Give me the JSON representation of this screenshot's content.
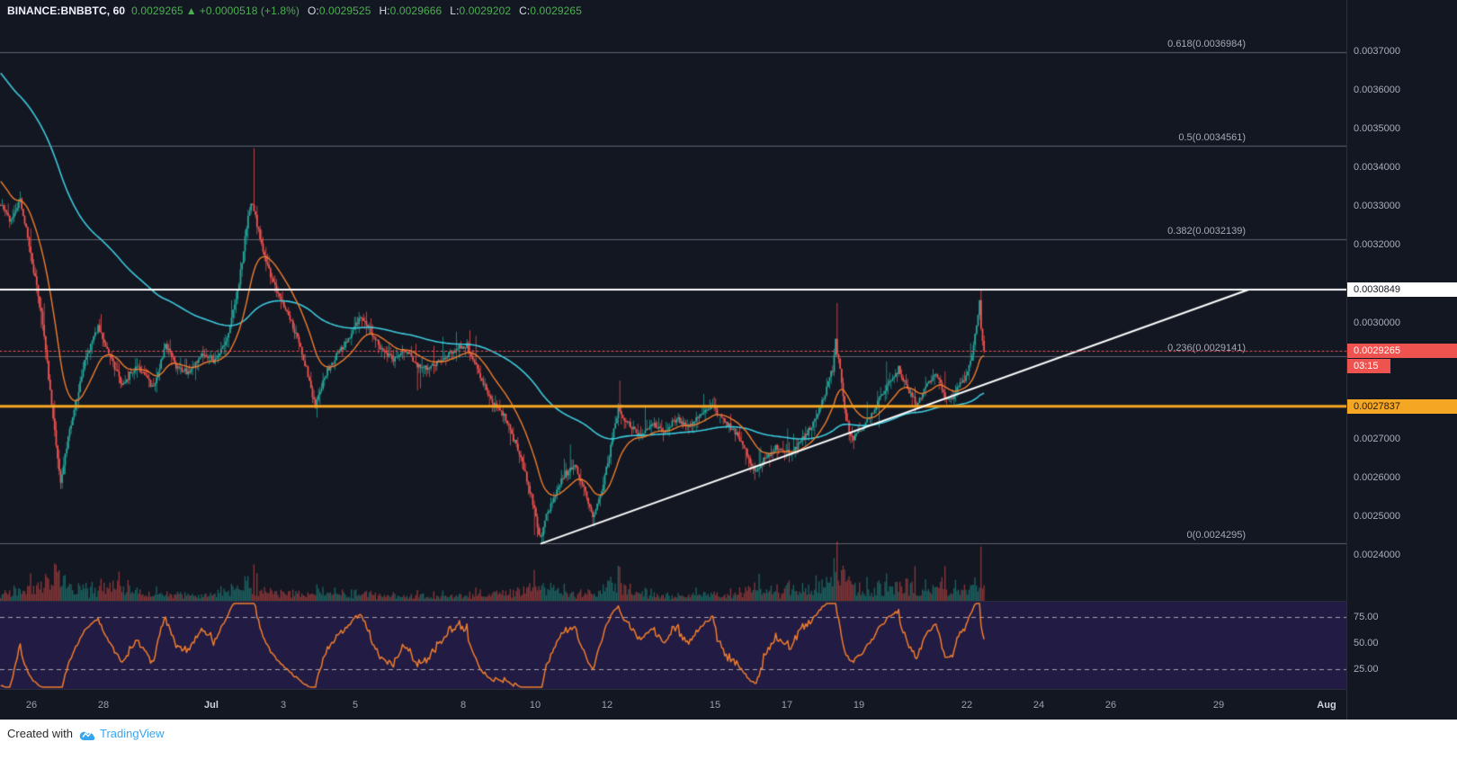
{
  "header": {
    "symbol": "BINANCE:BNBBTC, 60",
    "last_price": "0.0029265",
    "change_arrow": "▲",
    "change": "+0.0000518 (+1.8%)",
    "ohlc": [
      {
        "label": "O:",
        "value": "0.0029525"
      },
      {
        "label": "H:",
        "value": "0.0029666"
      },
      {
        "label": "L:",
        "value": "0.0029202"
      },
      {
        "label": "C:",
        "value": "0.0029265"
      }
    ]
  },
  "price_axis": {
    "ticks": [
      "0.0037000",
      "0.0036000",
      "0.0035000",
      "0.0034000",
      "0.0033000",
      "0.0032000",
      "0.0030000",
      "0.0027000",
      "0.0026000",
      "0.0025000",
      "0.0024000"
    ],
    "white_label": "0.0030849",
    "last_label": "0.0029265",
    "countdown": "03:15",
    "yellow_label": "0.0027837"
  },
  "rsi_axis": [
    "75.00",
    "50.00",
    "25.00"
  ],
  "time_axis": [
    {
      "label": "26",
      "day": 0
    },
    {
      "label": "28",
      "day": 2
    },
    {
      "label": "Jul",
      "day": 5,
      "month": true
    },
    {
      "label": "3",
      "day": 7
    },
    {
      "label": "5",
      "day": 9
    },
    {
      "label": "8",
      "day": 12
    },
    {
      "label": "10",
      "day": 14
    },
    {
      "label": "12",
      "day": 16
    },
    {
      "label": "15",
      "day": 19
    },
    {
      "label": "17",
      "day": 21
    },
    {
      "label": "19",
      "day": 23
    },
    {
      "label": "22",
      "day": 26
    },
    {
      "label": "24",
      "day": 28
    },
    {
      "label": "26",
      "day": 30
    },
    {
      "label": "29",
      "day": 33
    },
    {
      "label": "Aug",
      "day": 36,
      "month": true
    }
  ],
  "footer": {
    "created_with": "Created with",
    "brand": "TradingView"
  },
  "colors": {
    "bg": "#131722",
    "up": "#26a69a",
    "down": "#ef5350",
    "cyan": "#3cc9dc",
    "orange": "#ef7d2d",
    "gold": "#f5a623",
    "white": "#ffffff",
    "fib_line": "rgba(190,196,205,0.45)",
    "header_green": "#4caf50",
    "rsi_bg": "#221b43"
  },
  "chart_data": {
    "type": "candlestick",
    "symbol": "BINANCE:BNBBTC",
    "timeframe_minutes": 60,
    "title": "BNB/BTC hourly with Fibonacci retracement, ascending trendline, two EMAs, volume and RSI",
    "last": {
      "o": 0.0029525,
      "h": 0.0029666,
      "l": 0.0029202,
      "c": 0.0029265,
      "change": 5.18e-05,
      "change_pct": 1.8
    },
    "ylim": [
      0.0022817,
      0.0038323
    ],
    "hours_visible": 657,
    "fib_levels": [
      {
        "label": "0.618(0.0036984)",
        "value": 0.0036984
      },
      {
        "label": "0.5(0.0034561)",
        "value": 0.0034561
      },
      {
        "label": "0.382(0.0032139)",
        "value": 0.0032139
      },
      {
        "label": "0.236(0.0029141)",
        "value": 0.0029141
      },
      {
        "label": "0(0.0024295)",
        "value": 0.0024295
      }
    ],
    "levels": {
      "resistance_white": 0.0030849,
      "last_price": 0.0029265,
      "support_yellow": 0.0027837
    },
    "trendline": {
      "t1": 361,
      "p1": 0.0024295,
      "t2": 833,
      "p2": 0.0030849
    },
    "moving_averages": [
      {
        "name": "slow-ema-140",
        "color_key": "cyan"
      },
      {
        "name": "fast-ema-24",
        "color_key": "orange"
      }
    ],
    "rsi": {
      "period": 14,
      "upper": 75,
      "mid": 50,
      "lower": 25
    },
    "pre_keyframes": [
      [
        -113,
        0.00403
      ],
      [
        -82,
        0.00381
      ],
      [
        -51,
        0.00362
      ],
      [
        -25,
        0.00344
      ],
      [
        -8,
        0.00335
      ]
    ],
    "price_keyframes": [
      [
        0,
        0.00331
      ],
      [
        8,
        0.00326
      ],
      [
        14,
        0.00332
      ],
      [
        21,
        0.00318
      ],
      [
        29,
        0.003
      ],
      [
        37,
        0.00272
      ],
      [
        41,
        0.00259
      ],
      [
        47,
        0.00272
      ],
      [
        57,
        0.0029
      ],
      [
        66,
        0.00299
      ],
      [
        74,
        0.00291
      ],
      [
        82,
        0.00284
      ],
      [
        92,
        0.00289
      ],
      [
        103,
        0.00283
      ],
      [
        111,
        0.00294
      ],
      [
        119,
        0.00288
      ],
      [
        127,
        0.00287
      ],
      [
        136,
        0.00292
      ],
      [
        144,
        0.0029
      ],
      [
        152,
        0.00296
      ],
      [
        160,
        0.0031
      ],
      [
        166,
        0.00328
      ],
      [
        169,
        0.00331
      ],
      [
        175,
        0.0032
      ],
      [
        181,
        0.00312
      ],
      [
        189,
        0.00305
      ],
      [
        197,
        0.00298
      ],
      [
        205,
        0.00288
      ],
      [
        211,
        0.00278
      ],
      [
        218,
        0.00287
      ],
      [
        226,
        0.00292
      ],
      [
        234,
        0.00296
      ],
      [
        240,
        0.00301
      ],
      [
        246,
        0.00299
      ],
      [
        255,
        0.00293
      ],
      [
        263,
        0.0029
      ],
      [
        271,
        0.00293
      ],
      [
        279,
        0.00289
      ],
      [
        287,
        0.00288
      ],
      [
        296,
        0.00291
      ],
      [
        304,
        0.00293
      ],
      [
        312,
        0.00294
      ],
      [
        320,
        0.00287
      ],
      [
        328,
        0.0028
      ],
      [
        337,
        0.00276
      ],
      [
        343,
        0.0027
      ],
      [
        349,
        0.00264
      ],
      [
        355,
        0.00255
      ],
      [
        361,
        0.00244
      ],
      [
        365,
        0.0025
      ],
      [
        372,
        0.00257
      ],
      [
        378,
        0.00261
      ],
      [
        384,
        0.00263
      ],
      [
        390,
        0.00257
      ],
      [
        396,
        0.0025
      ],
      [
        402,
        0.00256
      ],
      [
        409,
        0.0027
      ],
      [
        413,
        0.00278
      ],
      [
        419,
        0.00274
      ],
      [
        427,
        0.00271
      ],
      [
        435,
        0.00274
      ],
      [
        443,
        0.00272
      ],
      [
        452,
        0.00275
      ],
      [
        460,
        0.00273
      ],
      [
        468,
        0.00276
      ],
      [
        476,
        0.00278
      ],
      [
        485,
        0.00274
      ],
      [
        493,
        0.00271
      ],
      [
        499,
        0.00266
      ],
      [
        505,
        0.00261
      ],
      [
        511,
        0.00265
      ],
      [
        519,
        0.00268
      ],
      [
        528,
        0.00266
      ],
      [
        534,
        0.00269
      ],
      [
        540,
        0.00272
      ],
      [
        546,
        0.00276
      ],
      [
        552,
        0.00283
      ],
      [
        556,
        0.00288
      ],
      [
        558,
        0.00295
      ],
      [
        562,
        0.00285
      ],
      [
        565,
        0.00275
      ],
      [
        569,
        0.0027
      ],
      [
        575,
        0.00272
      ],
      [
        581,
        0.00276
      ],
      [
        587,
        0.0028
      ],
      [
        593,
        0.00284
      ],
      [
        600,
        0.00288
      ],
      [
        606,
        0.00283
      ],
      [
        612,
        0.00279
      ],
      [
        618,
        0.00283
      ],
      [
        624,
        0.00287
      ],
      [
        628,
        0.00284
      ],
      [
        632,
        0.0028
      ],
      [
        636,
        0.00281
      ],
      [
        640,
        0.00284
      ],
      [
        645,
        0.00286
      ],
      [
        649,
        0.00291
      ],
      [
        652,
        0.003
      ],
      [
        654,
        0.00305
      ],
      [
        655,
        0.00298
      ],
      [
        657,
        0.00293
      ]
    ],
    "volume_keyframes": [
      [
        0,
        1.0
      ],
      [
        21,
        1.2
      ],
      [
        39,
        1.9
      ],
      [
        51,
        1.0
      ],
      [
        62,
        1.5
      ],
      [
        84,
        2.0
      ],
      [
        103,
        0.9
      ],
      [
        133,
        0.7
      ],
      [
        166,
        1.7
      ],
      [
        185,
        0.9
      ],
      [
        211,
        1.1
      ],
      [
        240,
        0.9
      ],
      [
        277,
        0.6
      ],
      [
        308,
        0.7
      ],
      [
        339,
        1.0
      ],
      [
        361,
        1.8
      ],
      [
        380,
        0.9
      ],
      [
        400,
        1.2
      ],
      [
        413,
        2.4
      ],
      [
        423,
        1.3
      ],
      [
        441,
        0.8
      ],
      [
        462,
        0.8
      ],
      [
        476,
        1.0
      ],
      [
        491,
        0.9
      ],
      [
        505,
        1.5
      ],
      [
        524,
        1.2
      ],
      [
        542,
        1.6
      ],
      [
        558,
        2.3
      ],
      [
        571,
        1.8
      ],
      [
        585,
        1.7
      ],
      [
        600,
        2.1
      ],
      [
        614,
        1.7
      ],
      [
        628,
        1.9
      ],
      [
        640,
        1.5
      ],
      [
        649,
        1.7
      ],
      [
        654,
        2.2
      ],
      [
        657,
        1.4
      ]
    ],
    "key_candles": [
      {
        "t": 169,
        "h": 0.00345
      },
      {
        "t": 361,
        "l": 0.0024295
      },
      {
        "t": 413,
        "h": 0.00285
      },
      {
        "t": 558,
        "h": 0.00305
      },
      {
        "t": 654,
        "h": 0.0030849
      },
      {
        "t": 656,
        "o": 0.0029525,
        "h": 0.0029666,
        "l": 0.0029202,
        "c": 0.0029265
      }
    ]
  }
}
